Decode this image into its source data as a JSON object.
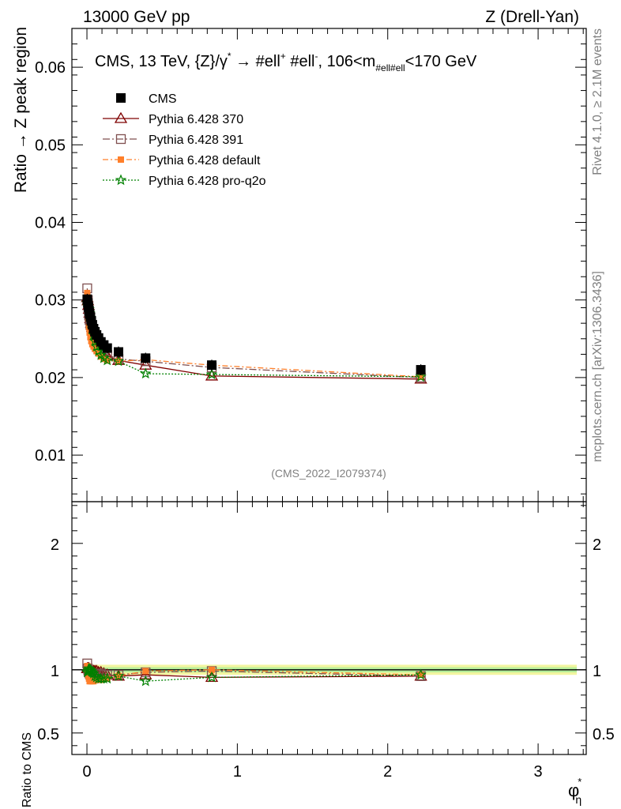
{
  "header": {
    "left_label": "13000 GeV pp",
    "right_label": "Z (Drell-Yan)"
  },
  "side_labels": {
    "rivet": "Rivet 4.1.0, ≥ 2.1M events",
    "mcplots": "mcplots.cern.ch [arXiv:1306.3436]"
  },
  "watermark": "(CMS_2022_I2079374)",
  "chart_data": [
    {
      "type": "line",
      "panel": "main",
      "title_parts": {
        "prefix": "CMS, 13 TeV, {Z}/γ",
        "gamma_sup": "*",
        "arrow": " →  #ell",
        "plus_sup": "+",
        "mid": " #ell",
        "minus_sup": "-",
        "range_prefix": ", 106<m",
        "range_sub": "#ell#ell",
        "range_suffix": "<170 GeV"
      },
      "ylabel": "Ratio → Z peak region",
      "xlabel": "φ",
      "xlabel_sup": "*",
      "xlabel_sub": "η",
      "xlim": [
        -0.1,
        3.32
      ],
      "ylim": [
        0.004,
        0.065
      ],
      "yticks": [
        0.01,
        0.02,
        0.03,
        0.04,
        0.05,
        0.06
      ],
      "ytick_labels": [
        "0.01",
        "0.02",
        "0.03",
        "0.04",
        "0.05",
        "0.06"
      ],
      "xticks": [
        0,
        1,
        2,
        3
      ],
      "xtick_labels": [
        "0",
        "1",
        "2",
        "3"
      ],
      "x": [
        0.002,
        0.006,
        0.01,
        0.014,
        0.018,
        0.023,
        0.029,
        0.036,
        0.044,
        0.053,
        0.064,
        0.077,
        0.093,
        0.112,
        0.135,
        0.21,
        0.39,
        0.83,
        2.22
      ],
      "series": [
        {
          "name": "CMS",
          "color": "#000000",
          "marker": "square-filled",
          "values": [
            0.0301,
            0.0296,
            0.0291,
            0.0286,
            0.0282,
            0.0278,
            0.0273,
            0.0268,
            0.0263,
            0.0259,
            0.0255,
            0.0251,
            0.0246,
            0.0242,
            0.0238,
            0.0233,
            0.0225,
            0.0216,
            0.021
          ]
        },
        {
          "name": "Pythia 6.428 370",
          "color": "#7f0000",
          "marker": "triangle-open",
          "dash": "",
          "values": [
            0.0303,
            0.0299,
            0.0293,
            0.0288,
            0.0283,
            0.0276,
            0.027,
            0.0265,
            0.0261,
            0.0256,
            0.0252,
            0.0247,
            0.024,
            0.0234,
            0.0228,
            0.0222,
            0.0216,
            0.0202,
            0.0198
          ]
        },
        {
          "name": "Pythia 6.428 391",
          "color": "#7f4f4f",
          "marker": "square-open",
          "dash": "9,3,2,3",
          "values": [
            0.0315,
            0.03,
            0.0289,
            0.028,
            0.0274,
            0.0268,
            0.0264,
            0.0259,
            0.0255,
            0.0251,
            0.0247,
            0.0243,
            0.0238,
            0.0233,
            0.0229,
            0.0224,
            0.0221,
            0.0213,
            0.02
          ]
        },
        {
          "name": "Pythia 6.428 default",
          "color": "#ff7f2a",
          "marker": "square-filled-small",
          "dash": "7,3,2,3",
          "values": [
            0.0309,
            0.0292,
            0.0276,
            0.0265,
            0.0258,
            0.0252,
            0.0247,
            0.0243,
            0.024,
            0.0237,
            0.0234,
            0.0231,
            0.0227,
            0.0224,
            0.0222,
            0.0221,
            0.0223,
            0.0216,
            0.0201
          ]
        },
        {
          "name": "Pythia 6.428 pro-q2o",
          "color": "#008000",
          "marker": "star",
          "dash": "2,2",
          "values": [
            0.0296,
            0.0292,
            0.029,
            0.0288,
            0.0283,
            0.0277,
            0.0271,
            0.0263,
            0.0255,
            0.0247,
            0.024,
            0.0234,
            0.0229,
            0.0225,
            0.0222,
            0.0221,
            0.0205,
            0.0204,
            0.0201
          ]
        }
      ],
      "legend": {
        "position": "top-left"
      }
    },
    {
      "type": "line",
      "panel": "ratio",
      "ylabel": "Ratio to CMS",
      "xlim": [
        -0.1,
        3.32
      ],
      "ylim": [
        0.33,
        2.33
      ],
      "yticks": [
        0.5,
        1,
        2
      ],
      "ytick_labels": [
        "0.5",
        "1",
        "2"
      ],
      "band": {
        "inner": [
          0.98,
          1.02
        ],
        "outer": [
          0.96,
          1.04
        ]
      },
      "x": [
        0.002,
        0.006,
        0.01,
        0.014,
        0.018,
        0.023,
        0.029,
        0.036,
        0.044,
        0.053,
        0.064,
        0.077,
        0.093,
        0.112,
        0.135,
        0.21,
        0.39,
        0.83,
        2.22
      ],
      "series": [
        {
          "name": "Pythia 6.428 370",
          "values": [
            1.01,
            1.01,
            1.01,
            1.01,
            1.0,
            0.99,
            0.99,
            0.99,
            0.99,
            0.99,
            0.99,
            0.98,
            0.98,
            0.97,
            0.96,
            0.95,
            0.96,
            0.94,
            0.95
          ]
        },
        {
          "name": "Pythia 6.428 391",
          "values": [
            1.05,
            1.01,
            0.99,
            0.98,
            0.97,
            0.96,
            0.97,
            0.97,
            0.97,
            0.97,
            0.97,
            0.97,
            0.97,
            0.96,
            0.96,
            0.96,
            0.98,
            0.99,
            0.95
          ]
        },
        {
          "name": "Pythia 6.428 default",
          "values": [
            1.03,
            0.99,
            0.95,
            0.93,
            0.91,
            0.91,
            0.91,
            0.91,
            0.91,
            0.92,
            0.92,
            0.92,
            0.92,
            0.93,
            0.93,
            0.95,
            0.99,
            1.0,
            0.96
          ]
        },
        {
          "name": "Pythia 6.428 pro-q2o",
          "values": [
            0.98,
            0.99,
            1.0,
            1.01,
            1.0,
            1.0,
            0.99,
            0.98,
            0.97,
            0.95,
            0.94,
            0.93,
            0.93,
            0.93,
            0.93,
            0.95,
            0.91,
            0.94,
            0.96
          ]
        }
      ]
    }
  ]
}
